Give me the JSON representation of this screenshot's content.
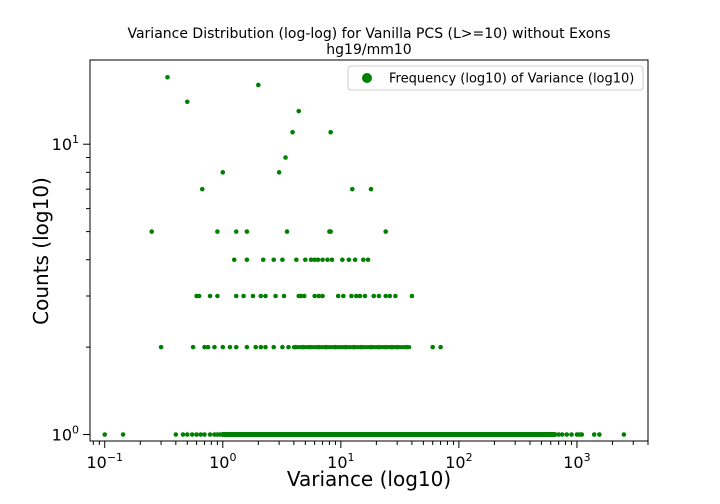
{
  "chart_data": {
    "type": "scatter",
    "title": "Variance Distribution (log-log) for Vanilla PCS (L>=10) without Exons",
    "subtitle": "hg19/mm10",
    "xlabel": "Variance (log10)",
    "ylabel": "Counts (log10)",
    "xscale": "log",
    "yscale": "log",
    "xlim": [
      0.075,
      4000
    ],
    "ylim": [
      0.95,
      19.5
    ],
    "grid": false,
    "legend_position": "top-right",
    "color": "#008000",
    "x_ticks": [
      {
        "value": 0.1,
        "base": "10",
        "exp": "−1"
      },
      {
        "value": 1,
        "base": "10",
        "exp": "0"
      },
      {
        "value": 10,
        "base": "10",
        "exp": "1"
      },
      {
        "value": 100,
        "base": "10",
        "exp": "2"
      },
      {
        "value": 1000,
        "base": "10",
        "exp": "3"
      }
    ],
    "y_ticks": [
      {
        "value": 1,
        "base": "10",
        "exp": "0"
      },
      {
        "value": 10,
        "base": "10",
        "exp": "1"
      }
    ],
    "series": [
      {
        "name": "Frequency (log10) of Variance (log10)",
        "points": [
          [
            0.1,
            1
          ],
          [
            0.143,
            1
          ],
          [
            0.4,
            1
          ],
          [
            0.46,
            1
          ],
          [
            0.5,
            1
          ],
          [
            0.55,
            1
          ],
          [
            0.6,
            1
          ],
          [
            0.65,
            1
          ],
          [
            0.7,
            1
          ],
          [
            0.78,
            1
          ],
          [
            0.85,
            1
          ],
          [
            0.9,
            1
          ],
          [
            0.95,
            1
          ],
          [
            1.05,
            1
          ],
          [
            1.2,
            1
          ],
          [
            1.5,
            1
          ],
          [
            2,
            1
          ],
          [
            3,
            1
          ],
          [
            5,
            1
          ],
          [
            8,
            1
          ],
          [
            12,
            1
          ],
          [
            20,
            1
          ],
          [
            35,
            1
          ],
          [
            60,
            1
          ],
          [
            100,
            1
          ],
          [
            170,
            1
          ],
          [
            300,
            1
          ],
          [
            450,
            1
          ],
          [
            600,
            1
          ],
          [
            700,
            1
          ],
          [
            750,
            1
          ],
          [
            820,
            1
          ],
          [
            900,
            1
          ],
          [
            1000,
            1
          ],
          [
            1050,
            1
          ],
          [
            1100,
            1
          ],
          [
            1400,
            1
          ],
          [
            1550,
            1
          ],
          [
            2500,
            1
          ],
          [
            0.3,
            2
          ],
          [
            0.56,
            2
          ],
          [
            0.7,
            2
          ],
          [
            0.75,
            2
          ],
          [
            0.85,
            2
          ],
          [
            1.0,
            2
          ],
          [
            1.15,
            2
          ],
          [
            1.3,
            2
          ],
          [
            1.6,
            2
          ],
          [
            1.9,
            2
          ],
          [
            2.1,
            2
          ],
          [
            2.3,
            2
          ],
          [
            2.7,
            2
          ],
          [
            3.2,
            2
          ],
          [
            3.6,
            2
          ],
          [
            4.1,
            2
          ],
          [
            4.8,
            2
          ],
          [
            5.5,
            2
          ],
          [
            6.5,
            2
          ],
          [
            7.5,
            2
          ],
          [
            9,
            2
          ],
          [
            11,
            2
          ],
          [
            13,
            2
          ],
          [
            15,
            2
          ],
          [
            18,
            2
          ],
          [
            21,
            2
          ],
          [
            24,
            2
          ],
          [
            27,
            2
          ],
          [
            30,
            2
          ],
          [
            36,
            2
          ],
          [
            60,
            2
          ],
          [
            70,
            2
          ],
          [
            0.6,
            3
          ],
          [
            0.63,
            3
          ],
          [
            0.78,
            3
          ],
          [
            0.9,
            3
          ],
          [
            1.3,
            3
          ],
          [
            1.5,
            3
          ],
          [
            1.8,
            3
          ],
          [
            2.1,
            3
          ],
          [
            2.3,
            3
          ],
          [
            2.8,
            3
          ],
          [
            3.3,
            3
          ],
          [
            4.4,
            3
          ],
          [
            4.6,
            3
          ],
          [
            4.9,
            3
          ],
          [
            6,
            3
          ],
          [
            6.5,
            3
          ],
          [
            7,
            3
          ],
          [
            9.5,
            3
          ],
          [
            10.5,
            3
          ],
          [
            12.3,
            3
          ],
          [
            13.5,
            3
          ],
          [
            14.5,
            3
          ],
          [
            16,
            3
          ],
          [
            19,
            3
          ],
          [
            21,
            3
          ],
          [
            24,
            3
          ],
          [
            26,
            3
          ],
          [
            29,
            3
          ],
          [
            40,
            3
          ],
          [
            1.25,
            4
          ],
          [
            1.6,
            4
          ],
          [
            2.2,
            4
          ],
          [
            2.7,
            4
          ],
          [
            3.2,
            4
          ],
          [
            4.2,
            4
          ],
          [
            5.0,
            4
          ],
          [
            5.6,
            4
          ],
          [
            6.0,
            4
          ],
          [
            6.4,
            4
          ],
          [
            7.0,
            4
          ],
          [
            7.7,
            4
          ],
          [
            8.4,
            4
          ],
          [
            10.3,
            4
          ],
          [
            11.7,
            4
          ],
          [
            13.2,
            4
          ],
          [
            15.5,
            4
          ],
          [
            17.0,
            4
          ],
          [
            0.25,
            5
          ],
          [
            0.9,
            5
          ],
          [
            1.3,
            5
          ],
          [
            1.6,
            5
          ],
          [
            3.5,
            5
          ],
          [
            8.0,
            5
          ],
          [
            8.2,
            5
          ],
          [
            24,
            5
          ],
          [
            0.67,
            7
          ],
          [
            12.5,
            7
          ],
          [
            18,
            7
          ],
          [
            1.0,
            8
          ],
          [
            3.0,
            8
          ],
          [
            3.4,
            9
          ],
          [
            3.9,
            11
          ],
          [
            8.2,
            11
          ],
          [
            4.4,
            13
          ],
          [
            0.5,
            14
          ],
          [
            2.0,
            16
          ],
          [
            0.34,
            17
          ]
        ]
      }
    ]
  }
}
